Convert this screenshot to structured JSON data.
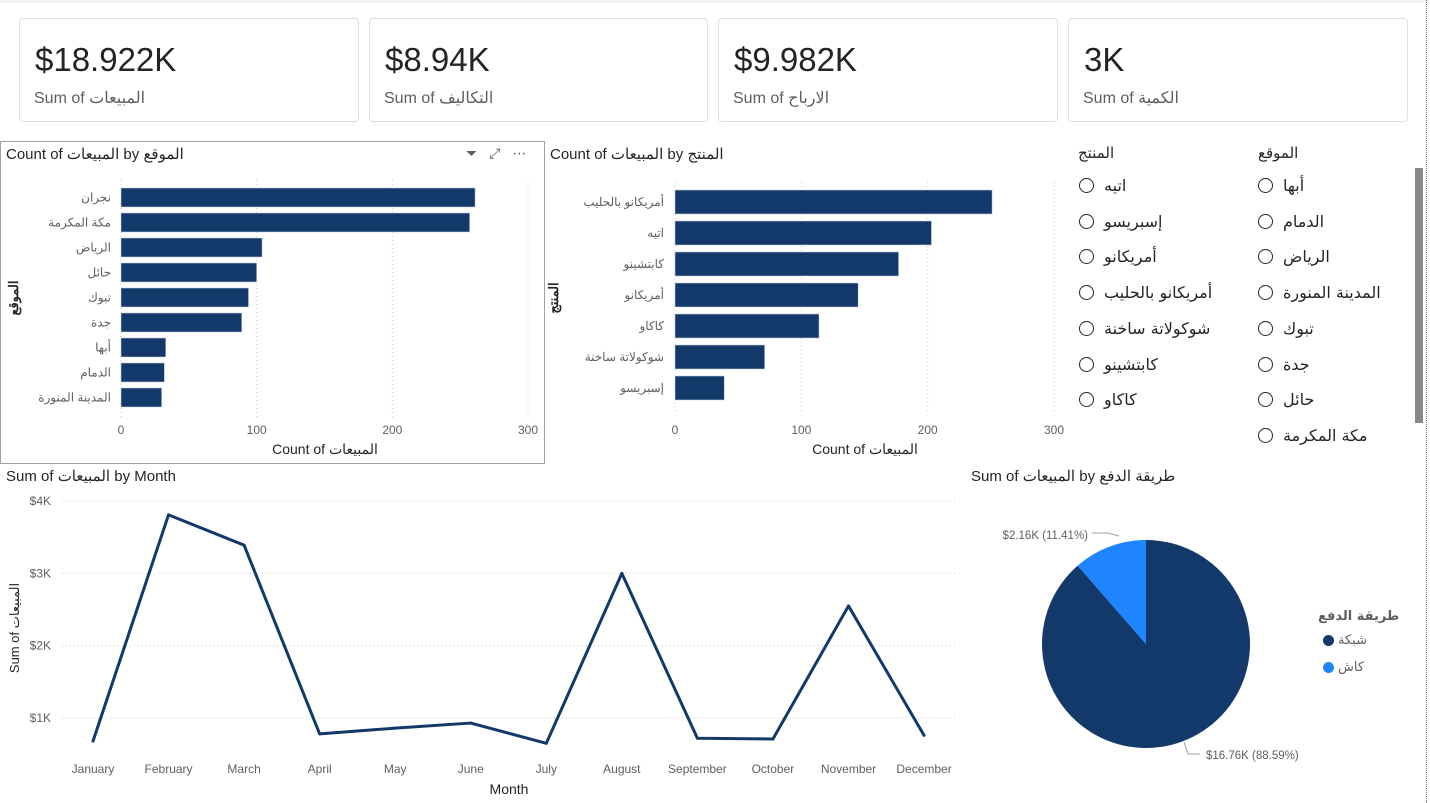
{
  "kpis": [
    {
      "value": "$18.922K",
      "label": "Sum of المبيعات"
    },
    {
      "value": "$8.94K",
      "label": "Sum of التكاليف"
    },
    {
      "value": "$9.982K",
      "label": "Sum of الارباح"
    },
    {
      "value": "3K",
      "label": "Sum of الكمية"
    }
  ],
  "visual_header_icons": [
    "filter-icon",
    "focus-mode-icon",
    "more-options-icon"
  ],
  "slicers": {
    "product": {
      "title": "المنتج",
      "items": [
        "اتيه",
        "إسبريسو",
        "أمريكانو",
        "أمريكانو بالحليب",
        "شوكولاتة ساخنة",
        "كابتشينو",
        "كاكاو"
      ]
    },
    "location": {
      "title": "الموقع",
      "items": [
        "أبها",
        "الدمام",
        "الرياض",
        "المدينة المنورة",
        "تبوك",
        "جدة",
        "حائل",
        "مكة المكرمة"
      ]
    }
  },
  "colors": {
    "primary": "#12396a",
    "secondary": "#1f84ff",
    "text": "#252423",
    "muted": "#605e5c"
  },
  "chart_data": [
    {
      "type": "bar",
      "orientation": "horizontal",
      "title": "Count of المبيعات by الموقع",
      "xlabel": "Count of المبيعات",
      "ylabel": "الموقع",
      "xlim": [
        0,
        300
      ],
      "xticks": [
        "0",
        "100",
        "200",
        "300"
      ],
      "grid": true,
      "categories": [
        "نجران",
        "مكة المكرمة",
        "الرياض",
        "حائل",
        "تبوك",
        "جدة",
        "أبها",
        "الدمام",
        "المدينة المنورة"
      ],
      "values": [
        261,
        257,
        104,
        100,
        94,
        89,
        33,
        32,
        30
      ]
    },
    {
      "type": "bar",
      "orientation": "horizontal",
      "title": "Count of المبيعات by المنتج",
      "xlabel": "Count of المبيعات",
      "ylabel": "المنتج",
      "xlim": [
        0,
        300
      ],
      "xticks": [
        "0",
        "100",
        "200",
        "300"
      ],
      "grid": true,
      "categories": [
        "أمريكانو بالحليب",
        "اتيه",
        "كابتشينو",
        "أمريكانو",
        "كاكاو",
        "شوكولاتة ساخنة",
        "إسبريسو"
      ],
      "values": [
        251,
        203,
        177,
        145,
        114,
        71,
        39
      ]
    },
    {
      "type": "line",
      "title": "Sum of المبيعات by Month",
      "xlabel": "Month",
      "ylabel": "Sum of المبيعات",
      "ylim": [
        0,
        4000
      ],
      "yticks": [
        "$1K",
        "$2K",
        "$3K",
        "$4K"
      ],
      "grid": true,
      "categories": [
        "January",
        "February",
        "March",
        "April",
        "May",
        "June",
        "July",
        "August",
        "September",
        "October",
        "November",
        "December"
      ],
      "values": [
        680,
        3810,
        3390,
        780,
        860,
        930,
        650,
        3000,
        720,
        710,
        2550,
        760
      ]
    },
    {
      "type": "pie",
      "title": "Sum of المبيعات by طريقة الدفع",
      "legend_title": "طريقة الدفع",
      "legend_position": "right",
      "slices": [
        {
          "name": "شبكة",
          "value": 16.76,
          "label": "$16.76K (88.59%)",
          "color": "#12396a"
        },
        {
          "name": "كاش",
          "value": 2.16,
          "label": "$2.16K (11.41%)",
          "color": "#1f84ff"
        }
      ]
    }
  ]
}
